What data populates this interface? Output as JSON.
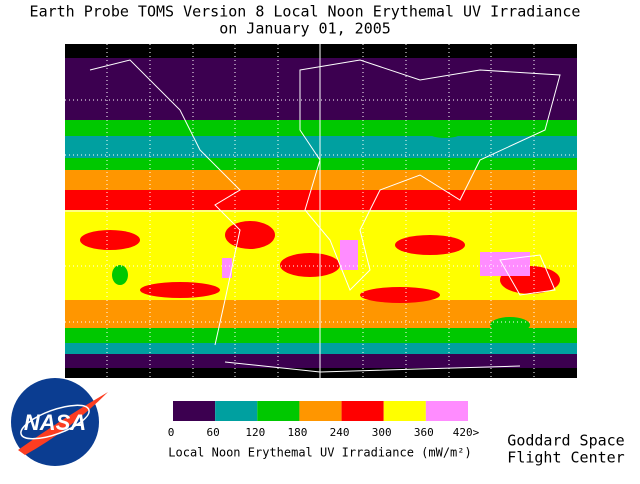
{
  "header": {
    "title_lines": [
      "Earth Probe TOMS Version 8 Local Noon Erythemal UV Irradiance",
      "on January 01, 2005"
    ]
  },
  "colorbar": {
    "ticks": [
      0,
      60,
      120,
      180,
      240,
      300,
      360,
      {
        "value": 420,
        "label": "420>"
      }
    ],
    "colors": [
      "#3c0050",
      "#00a0a0",
      "#00c800",
      "#ff9600",
      "#ff0000",
      "#ffff00",
      "#ff8cff"
    ],
    "label": "Local Noon Erythemal UV Irradiance (mW/m²)"
  },
  "logo": {
    "text": "NASA"
  },
  "credits": [
    "Goddard Space",
    "Flight Center"
  ]
}
